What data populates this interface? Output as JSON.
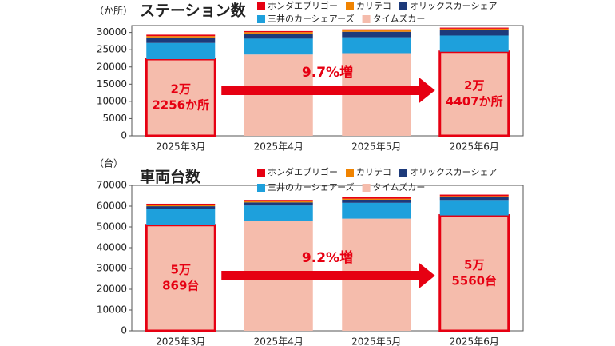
{
  "chart_data": [
    {
      "type": "bar",
      "stacked": true,
      "title": "ステーション数",
      "unit_label": "（か所）",
      "categories": [
        "2025年3月",
        "2025年4月",
        "2025年5月",
        "2025年6月"
      ],
      "series": [
        {
          "name": "タイムズカー",
          "color": "#f5bcac",
          "values": [
            22256,
            23600,
            24000,
            24407
          ]
        },
        {
          "name": "三井のカーシェアーズ",
          "color": "#1ea0dc",
          "values": [
            4700,
            4600,
            4600,
            4700
          ]
        },
        {
          "name": "オリックスカーシェア",
          "color": "#1d3a7a",
          "values": [
            1600,
            1500,
            1600,
            1600
          ]
        },
        {
          "name": "カリテコ",
          "color": "#f08300",
          "values": [
            400,
            400,
            400,
            400
          ]
        },
        {
          "name": "ホンダエブリゴー",
          "color": "#e60012",
          "values": [
            400,
            300,
            300,
            300
          ]
        }
      ],
      "ylim": [
        0,
        32000
      ],
      "yticks": [
        0,
        5000,
        10000,
        15000,
        20000,
        25000,
        30000
      ],
      "start_label": [
        "2万",
        "2256か所"
      ],
      "change_label": "9.7%増",
      "end_label": [
        "2万",
        "4407か所"
      ]
    },
    {
      "type": "bar",
      "stacked": true,
      "title": "車両台数",
      "unit_label": "（台）",
      "categories": [
        "2025年3月",
        "2025年4月",
        "2025年5月",
        "2025年6月"
      ],
      "series": [
        {
          "name": "タイムズカー",
          "color": "#f5bcac",
          "values": [
            50869,
            52800,
            54000,
            55560
          ]
        },
        {
          "name": "三井のカーシェアーズ",
          "color": "#1ea0dc",
          "values": [
            7600,
            7500,
            7600,
            7400
          ]
        },
        {
          "name": "オリックスカーシェア",
          "color": "#1d3a7a",
          "values": [
            1500,
            1500,
            1500,
            1400
          ]
        },
        {
          "name": "カリテコ",
          "color": "#f08300",
          "values": [
            500,
            500,
            500,
            500
          ]
        },
        {
          "name": "ホンダエブリゴー",
          "color": "#e60012",
          "values": [
            700,
            700,
            700,
            700
          ]
        }
      ],
      "ylim": [
        0,
        70000
      ],
      "yticks": [
        0,
        10000,
        20000,
        30000,
        40000,
        50000,
        60000,
        70000
      ],
      "start_label": [
        "5万",
        "869台"
      ],
      "change_label": "9.2%増",
      "end_label": [
        "5万",
        "5560台"
      ]
    }
  ]
}
